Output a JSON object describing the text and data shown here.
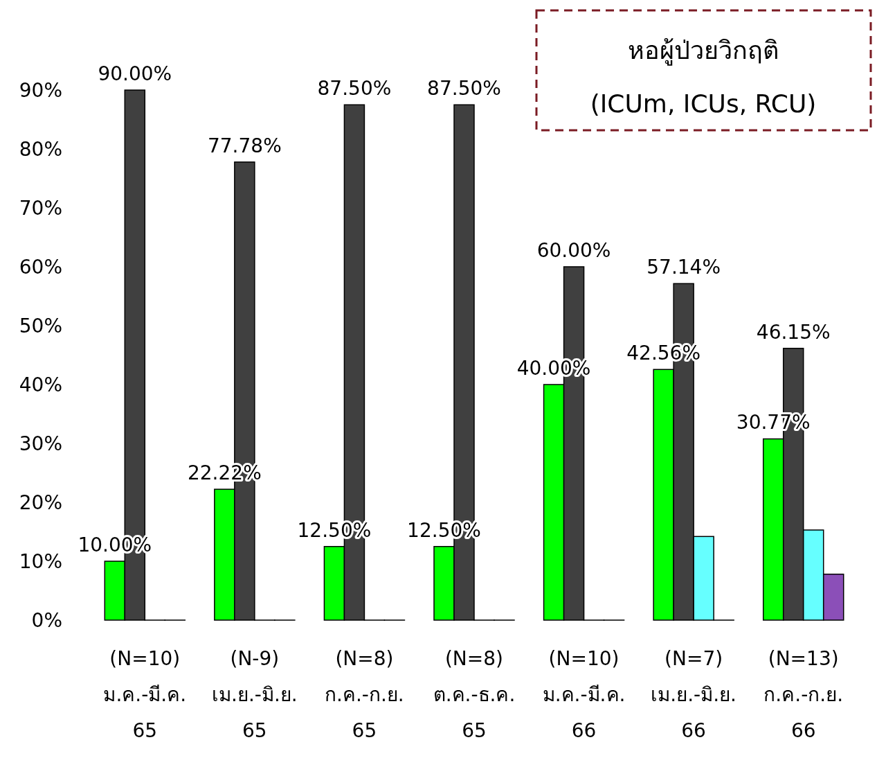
{
  "chart_data": {
    "type": "bar",
    "title": "หอผู้ป่วยวิกฤติ",
    "subtitle": "(ICUm, ICUs, RCU)",
    "categories": [
      "(N=10)\nม.ค.-มี.ค.\n65",
      "(N-9)\nเม.ย.-มิ.ย.\n65",
      "(N=8)\nก.ค.-ก.ย.\n65",
      "(N=8)\nต.ค.-ธ.ค.\n65",
      "(N=10)\nม.ค.-มี.ค.\n66",
      "(N=7)\nเม.ย.-มิ.ย.\n66",
      "(N=13)\nก.ค.-ก.ย.\n66"
    ],
    "series": [
      {
        "color": "#00ff00",
        "values": [
          10,
          22.22,
          12.5,
          12.5,
          40,
          42.56,
          30.77
        ],
        "value_labels": [
          "10.00%",
          "22.22%",
          "12.50%",
          "12.50%",
          "40.00%",
          "42.56%",
          "30.77%"
        ]
      },
      {
        "color": "#404040",
        "values": [
          90,
          77.78,
          87.5,
          87.5,
          60,
          57.14,
          46.15
        ],
        "value_labels": [
          "90.00%",
          "77.78%",
          "87.50%",
          "87.50%",
          "60.00%",
          "57.14%",
          "46.15%"
        ]
      },
      {
        "color": "#66ffff",
        "values": [
          0,
          0,
          0,
          0,
          0,
          14.2,
          15.3
        ]
      },
      {
        "color": "#8b4fb8",
        "values": [
          0,
          0,
          0,
          0,
          0,
          0,
          7.8
        ]
      }
    ],
    "ylim": [
      0,
      90
    ],
    "yticks": [
      {
        "value": 0,
        "label": "0%"
      },
      {
        "value": 10,
        "label": "10%"
      },
      {
        "value": 20,
        "label": "20%"
      },
      {
        "value": 30,
        "label": "30%"
      },
      {
        "value": 40,
        "label": "40%"
      },
      {
        "value": 50,
        "label": "50%"
      },
      {
        "value": 60,
        "label": "60%"
      },
      {
        "value": 70,
        "label": "70%"
      },
      {
        "value": 80,
        "label": "80%"
      },
      {
        "value": 90,
        "label": "90%"
      }
    ],
    "grid": false
  }
}
